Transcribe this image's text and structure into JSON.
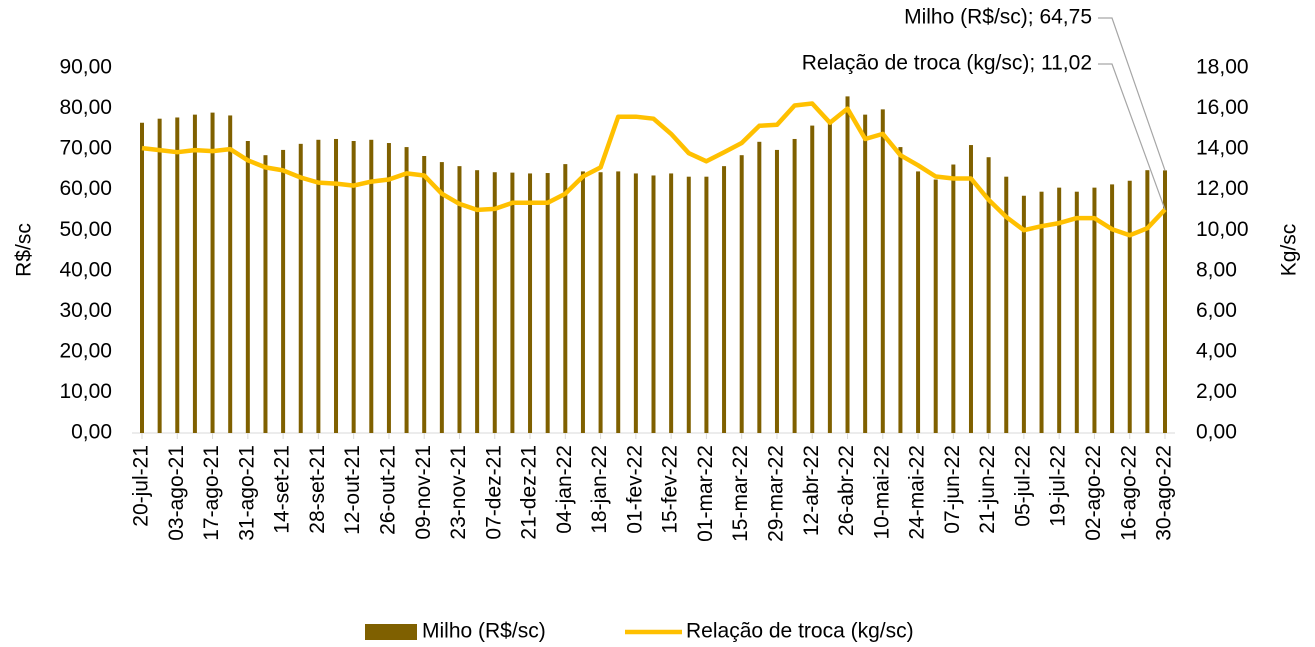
{
  "chart_data": {
    "type": "bar-line",
    "categories": [
      "20-jul-21",
      null,
      "03-ago-21",
      null,
      "17-ago-21",
      null,
      "31-ago-21",
      null,
      "14-set-21",
      null,
      "28-set-21",
      null,
      "12-out-21",
      null,
      "26-out-21",
      null,
      "09-nov-21",
      null,
      "23-nov-21",
      null,
      "07-dez-21",
      null,
      "21-dez-21",
      null,
      "04-jan-22",
      null,
      "18-jan-22",
      null,
      "01-fev-22",
      null,
      "15-fev-22",
      null,
      "01-mar-22",
      null,
      "15-mar-22",
      null,
      "29-mar-22",
      null,
      "12-abr-22",
      null,
      "26-abr-22",
      null,
      "10-mai-22",
      null,
      "24-mai-22",
      null,
      "07-jun-22",
      null,
      "21-jun-22",
      null,
      "05-jul-22",
      null,
      "19-jul-22",
      null,
      "02-ago-22",
      null,
      "16-ago-22",
      null,
      "30-ago-22"
    ],
    "series": [
      {
        "name": "Milho (R$/sc)",
        "type": "bar",
        "color": "#7f6000",
        "values": [
          76.5,
          77.5,
          77.8,
          78.5,
          79,
          78.3,
          72,
          68.5,
          69.8,
          71.3,
          72.3,
          72.5,
          72,
          72.3,
          71.5,
          70.5,
          68.3,
          66.8,
          65.8,
          64.8,
          64.3,
          64.2,
          64,
          64.1,
          66.3,
          64.5,
          64.3,
          64.5,
          64,
          63.5,
          64,
          63.2,
          63.2,
          65.8,
          68.5,
          71.8,
          69.8,
          72.5,
          75.8,
          77,
          83,
          78.5,
          79.8,
          70.5,
          64.5,
          62.5,
          66.2,
          71,
          68,
          63.2,
          58.5,
          59.5,
          60.5,
          59.5,
          60.5,
          61.3,
          62.2,
          64.8,
          64.75
        ]
      },
      {
        "name": "Relação de troca (kg/sc)",
        "type": "line",
        "axis": "y2",
        "color": "#ffc000",
        "values": [
          14.05,
          13.95,
          13.85,
          13.95,
          13.9,
          14.0,
          13.45,
          13.1,
          12.95,
          12.6,
          12.35,
          12.3,
          12.2,
          12.4,
          12.5,
          12.8,
          12.7,
          11.8,
          11.3,
          11.0,
          11.05,
          11.35,
          11.35,
          11.35,
          11.8,
          12.65,
          13.1,
          15.6,
          15.6,
          15.5,
          14.75,
          13.8,
          13.4,
          13.85,
          14.3,
          15.15,
          15.2,
          16.15,
          16.25,
          15.3,
          16.0,
          14.5,
          14.75,
          13.7,
          13.2,
          12.65,
          12.55,
          12.55,
          11.5,
          10.65,
          10.0,
          10.2,
          10.35,
          10.6,
          10.6,
          10.05,
          9.75,
          10.1,
          11.02
        ]
      }
    ],
    "ylabel": "R$/sc",
    "y2label": "Kg/sc",
    "ylim": [
      0,
      90
    ],
    "yticks": [
      {
        "value": 0,
        "label": "0,00"
      },
      {
        "value": 10,
        "label": "10,00"
      },
      {
        "value": 20,
        "label": "20,00"
      },
      {
        "value": 30,
        "label": "30,00"
      },
      {
        "value": 40,
        "label": "40,00"
      },
      {
        "value": 50,
        "label": "50,00"
      },
      {
        "value": 60,
        "label": "60,00"
      },
      {
        "value": 70,
        "label": "70,00"
      },
      {
        "value": 80,
        "label": "80,00"
      },
      {
        "value": 90,
        "label": "90,00"
      }
    ],
    "y2lim": [
      0,
      18
    ],
    "y2ticks": [
      {
        "value": 0,
        "label": "0,00"
      },
      {
        "value": 2,
        "label": "2,00"
      },
      {
        "value": 4,
        "label": "4,00"
      },
      {
        "value": 6,
        "label": "6,00"
      },
      {
        "value": 8,
        "label": "8,00"
      },
      {
        "value": 10,
        "label": "10,00"
      },
      {
        "value": 12,
        "label": "12,00"
      },
      {
        "value": 14,
        "label": "14,00"
      },
      {
        "value": 16,
        "label": "16,00"
      },
      {
        "value": 18,
        "label": "18,00"
      }
    ],
    "annotations": [
      "Milho (R$/sc); 64,75",
      "Relação de troca (kg/sc); 11,02"
    ],
    "legend": "bottom"
  }
}
